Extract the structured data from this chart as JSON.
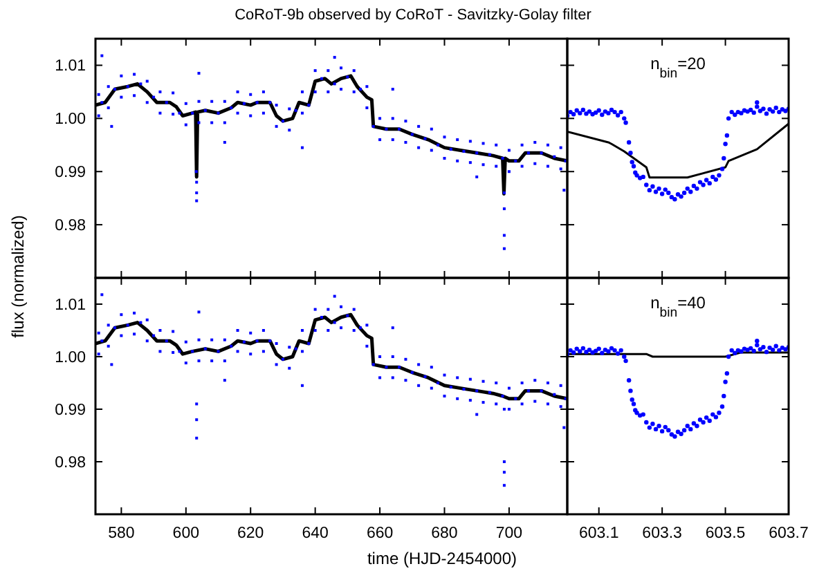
{
  "chart_data": [
    {
      "type": "scatter",
      "title": "CoRoT-9b observed by CoRoT - Savitzky-Golay filter",
      "xlim": [
        572,
        718
      ],
      "ylim": [
        0.97,
        1.015
      ],
      "xticks": [
        580,
        600,
        620,
        640,
        660,
        680,
        700
      ],
      "yticks": [
        0.98,
        0.99,
        {
          "value": 1,
          "label": "1.00"
        },
        1.01
      ],
      "tick_labels": "y",
      "grid": false,
      "series": [
        {
          "marker": "square",
          "color": "#0000ff",
          "x": [
            573,
            573,
            574,
            576,
            576,
            578,
            580,
            580,
            582,
            584,
            584,
            586,
            588,
            588,
            590,
            592,
            592,
            594,
            596,
            596,
            598,
            600,
            600,
            602,
            604,
            604,
            606,
            608,
            608,
            610,
            612,
            612,
            614,
            616,
            616,
            618,
            620,
            620,
            622,
            624,
            624,
            626,
            628,
            628,
            630,
            632,
            632,
            634,
            636,
            636,
            638,
            640,
            640,
            642,
            644,
            644,
            646,
            648,
            648,
            650,
            652,
            652,
            654,
            656,
            656,
            658,
            660,
            660,
            662,
            664,
            664,
            666,
            668,
            668,
            670,
            672,
            672,
            674,
            676,
            676,
            678,
            680,
            680,
            682,
            684,
            684,
            686,
            688,
            688,
            690,
            692,
            692,
            694,
            696,
            696,
            698,
            700,
            700,
            702,
            704,
            704,
            706,
            708,
            708,
            710,
            712,
            712,
            714,
            716,
            716,
            717.5,
            603.2,
            603.3,
            603.3,
            603.3,
            698.5,
            698.5,
            698.5,
            698.5,
            574,
            577,
            604,
            612,
            636,
            646,
            664,
            690,
            717
          ],
          "values": [
            1.0045,
            1.0005,
            1.003,
            1.006,
            1.002,
            1.0055,
            1.008,
            1.004,
            1.006,
            1.0083,
            1.0043,
            1.0065,
            1.007,
            1.003,
            1.004,
            1.005,
            1.001,
            1.003,
            1.0048,
            1.0008,
            1.001,
            1.0028,
            0.9988,
            1.001,
            1.0032,
            0.9992,
            1.0015,
            1.0032,
            0.9992,
            1.001,
            1.0032,
            0.9992,
            1.002,
            1.005,
            1.001,
            1.0028,
            1.0045,
            1.0005,
            1.003,
            1.005,
            1.001,
            1.003,
            1.0025,
            0.9985,
            0.9995,
            1.0018,
            0.9978,
            1.0015,
            1.005,
            1.001,
            1.0025,
            1.009,
            1.005,
            1.0075,
            1.009,
            1.005,
            1.0065,
            1.0095,
            1.0055,
            1.0078,
            1.009,
            1.005,
            1.0055,
            1.006,
            1.002,
            0.9985,
            1.0,
            0.996,
            0.998,
            1.0,
            0.996,
            0.998,
            0.9995,
            0.9955,
            0.997,
            0.9985,
            0.9945,
            0.9962,
            0.998,
            0.994,
            0.995,
            0.9965,
            0.9925,
            0.9942,
            0.996,
            0.992,
            0.9938,
            0.9957,
            0.9917,
            0.9935,
            0.9953,
            0.9913,
            0.9932,
            0.995,
            0.991,
            0.9925,
            0.994,
            0.99,
            0.992,
            0.995,
            0.991,
            0.9935,
            0.9955,
            0.9915,
            0.9935,
            0.995,
            0.991,
            0.9928,
            0.9945,
            0.9905,
            0.992,
            0.99,
            0.988,
            0.986,
            0.9845,
            0.986,
            0.983,
            0.978,
            0.9755,
            1.0118,
            0.9985,
            1.0085,
            0.9955,
            0.9945,
            1.0115,
            1.0055,
            0.989,
            0.9865
          ]
        },
        {
          "type": "line",
          "marker": "none",
          "color": "#000000",
          "x": [
            572,
            575,
            578,
            582,
            585,
            588,
            591,
            595,
            597,
            599,
            602,
            603.0,
            603.3,
            603.6,
            606,
            610,
            614,
            616,
            620,
            622,
            626,
            628,
            630,
            633,
            635,
            638,
            640,
            643,
            645,
            648,
            651,
            653,
            656,
            657.5,
            658,
            662,
            666,
            670,
            675,
            680,
            685,
            690,
            695,
            698,
            698.4,
            698.8,
            700,
            703,
            705,
            710,
            714,
            718
          ],
          "values": [
            1.0025,
            1.003,
            1.0055,
            1.006,
            1.0065,
            1.005,
            1.003,
            1.003,
            1.0022,
            1.0005,
            1.001,
            1.0012,
            0.989,
            1.0012,
            1.0015,
            1.001,
            1.002,
            1.003,
            1.0025,
            1.003,
            1.003,
            1.0005,
            0.9995,
            1.0,
            1.003,
            1.0025,
            1.007,
            1.0075,
            1.0065,
            1.0075,
            1.008,
            1.006,
            1.004,
            1.0035,
            0.9985,
            0.998,
            0.998,
            0.997,
            0.996,
            0.9945,
            0.994,
            0.9935,
            0.993,
            0.9925,
            0.9858,
            0.9925,
            0.992,
            0.992,
            0.9935,
            0.9935,
            0.9925,
            0.992
          ]
        }
      ]
    },
    {
      "type": "scatter",
      "xlim": [
        603.0,
        603.7
      ],
      "ylim": [
        0.97,
        1.015
      ],
      "xticks": [
        603.1,
        603.3,
        603.5,
        603.7
      ],
      "yticks": [
        0.98,
        0.99,
        1,
        1.01
      ],
      "tick_labels": false,
      "grid": false,
      "annotations": [
        "n$_{bin}$=20"
      ],
      "series": [
        {
          "marker": "circle",
          "color": "#0000ff",
          "x": [
            603.0,
            603.01,
            603.02,
            603.03,
            603.04,
            603.05,
            603.06,
            603.07,
            603.08,
            603.09,
            603.1,
            603.11,
            603.12,
            603.13,
            603.14,
            603.15,
            603.16,
            603.17,
            603.18,
            603.185,
            603.195,
            603.2,
            603.205,
            603.21,
            603.215,
            603.22,
            603.23,
            603.24,
            603.25,
            603.26,
            603.27,
            603.28,
            603.29,
            603.3,
            603.31,
            603.32,
            603.33,
            603.34,
            603.35,
            603.36,
            603.37,
            603.38,
            603.39,
            603.4,
            603.41,
            603.42,
            603.43,
            603.44,
            603.45,
            603.46,
            603.47,
            603.48,
            603.49,
            603.495,
            603.5,
            603.505,
            603.51,
            603.52,
            603.53,
            603.54,
            603.55,
            603.56,
            603.57,
            603.58,
            603.59,
            603.6,
            603.61,
            603.62,
            603.63,
            603.64,
            603.65,
            603.66,
            603.67,
            603.68,
            603.69,
            603.7,
            603.6
          ],
          "values": [
            1.0005,
            1.0012,
            1.0008,
            1.0015,
            1.001,
            1.0016,
            1.0009,
            1.0013,
            1.0008,
            1.0011,
            1.0015,
            1.0007,
            1.0013,
            1.001,
            1.0016,
            1.0012,
            1.0006,
            1.0012,
            1.0,
            0.9992,
            0.9955,
            0.9935,
            0.9918,
            0.991,
            0.9898,
            0.9893,
            0.9888,
            0.989,
            0.9875,
            0.9865,
            0.9872,
            0.9862,
            0.9868,
            0.9858,
            0.9866,
            0.986,
            0.9852,
            0.9848,
            0.9857,
            0.9853,
            0.986,
            0.9868,
            0.9862,
            0.9873,
            0.9868,
            0.988,
            0.9875,
            0.9884,
            0.9878,
            0.989,
            0.9885,
            0.9893,
            0.9905,
            0.9925,
            0.9952,
            0.9968,
            1.0,
            1.0012,
            1.0007,
            1.0012,
            1.001,
            1.0015,
            1.0013,
            1.0016,
            1.0011,
            1.0022,
            1.0014,
            1.0018,
            1.0009,
            1.0017,
            1.0013,
            1.002,
            1.0012,
            1.0017,
            1.0014,
            1.0018,
            1.003
          ]
        },
        {
          "type": "line",
          "marker": "none",
          "color": "#000000",
          "x": [
            603.0,
            603.13,
            603.14,
            603.18,
            603.25,
            603.26,
            603.38,
            603.5,
            603.51,
            603.6,
            603.7
          ],
          "values": [
            0.9975,
            0.9955,
            0.9952,
            0.9938,
            0.9908,
            0.9889,
            0.9889,
            0.9908,
            0.992,
            0.9942,
            0.999
          ]
        }
      ]
    },
    {
      "type": "scatter",
      "xlabel": "time (HJD-2454000)",
      "ylabel": "flux (normalized)",
      "xlim": [
        572,
        718
      ],
      "ylim": [
        0.97,
        1.015
      ],
      "xticks": [
        580,
        600,
        620,
        640,
        660,
        680,
        700
      ],
      "yticks": [
        0.98,
        0.99,
        {
          "value": 1,
          "label": "1.00"
        },
        1.01
      ],
      "grid": false,
      "series": [
        {
          "marker": "square",
          "color": "#0000ff",
          "x": [
            573,
            573,
            574,
            576,
            576,
            578,
            580,
            580,
            582,
            584,
            584,
            586,
            588,
            588,
            590,
            592,
            592,
            594,
            596,
            596,
            598,
            600,
            600,
            602,
            604,
            604,
            606,
            608,
            608,
            610,
            612,
            612,
            614,
            616,
            616,
            618,
            620,
            620,
            622,
            624,
            624,
            626,
            628,
            628,
            630,
            632,
            632,
            634,
            636,
            636,
            638,
            640,
            640,
            642,
            644,
            644,
            646,
            648,
            648,
            650,
            652,
            652,
            654,
            656,
            656,
            658,
            660,
            660,
            662,
            664,
            664,
            666,
            668,
            668,
            670,
            672,
            672,
            674,
            676,
            676,
            678,
            680,
            680,
            682,
            684,
            684,
            686,
            688,
            688,
            690,
            692,
            692,
            694,
            696,
            696,
            698,
            700,
            700,
            702,
            704,
            704,
            706,
            708,
            708,
            710,
            712,
            712,
            714,
            716,
            716,
            717.5,
            603.3,
            603.3,
            603.3,
            698.5,
            698.5,
            698.5,
            698.5,
            574,
            577,
            604,
            612,
            636,
            646,
            664,
            690,
            717
          ],
          "values": [
            1.0045,
            1.0005,
            1.003,
            1.006,
            1.002,
            1.0055,
            1.008,
            1.004,
            1.006,
            1.0083,
            1.0043,
            1.0065,
            1.007,
            1.003,
            1.004,
            1.005,
            1.001,
            1.003,
            1.0048,
            1.0008,
            1.001,
            1.0028,
            0.9988,
            1.001,
            1.0032,
            0.9992,
            1.0015,
            1.0032,
            0.9992,
            1.001,
            1.0032,
            0.9992,
            1.002,
            1.005,
            1.001,
            1.0028,
            1.0045,
            1.0005,
            1.003,
            1.005,
            1.001,
            1.003,
            1.0025,
            0.9985,
            0.9995,
            1.0018,
            0.9978,
            1.0015,
            1.005,
            1.001,
            1.0025,
            1.009,
            1.005,
            1.0075,
            1.009,
            1.005,
            1.0065,
            1.0095,
            1.0055,
            1.0078,
            1.009,
            1.005,
            1.0055,
            1.006,
            1.002,
            0.9985,
            1.0,
            0.996,
            0.998,
            1.0,
            0.996,
            0.998,
            0.9995,
            0.9955,
            0.997,
            0.9985,
            0.9945,
            0.9962,
            0.998,
            0.994,
            0.995,
            0.9965,
            0.9925,
            0.9942,
            0.996,
            0.992,
            0.9938,
            0.9957,
            0.9917,
            0.9935,
            0.9953,
            0.9913,
            0.9932,
            0.995,
            0.991,
            0.9925,
            0.994,
            0.99,
            0.992,
            0.995,
            0.991,
            0.9935,
            0.9955,
            0.9915,
            0.9935,
            0.995,
            0.991,
            0.9928,
            0.9945,
            0.9905,
            0.992,
            0.991,
            0.988,
            0.9845,
            0.99,
            0.98,
            0.978,
            0.9755,
            1.0118,
            0.9985,
            1.0085,
            0.9955,
            0.9945,
            1.0115,
            1.0055,
            0.989,
            0.9865
          ]
        },
        {
          "type": "line",
          "marker": "none",
          "color": "#000000",
          "x": [
            572,
            575,
            578,
            582,
            585,
            588,
            591,
            595,
            597,
            599,
            602,
            606,
            610,
            614,
            616,
            620,
            622,
            626,
            628,
            630,
            633,
            635,
            638,
            640,
            643,
            645,
            648,
            651,
            653,
            656,
            657.5,
            658,
            662,
            666,
            670,
            675,
            680,
            685,
            690,
            695,
            698,
            700,
            703,
            705,
            710,
            714,
            718
          ],
          "values": [
            1.0025,
            1.003,
            1.0055,
            1.006,
            1.0065,
            1.005,
            1.003,
            1.003,
            1.0022,
            1.0005,
            1.001,
            1.0015,
            1.001,
            1.002,
            1.003,
            1.0025,
            1.003,
            1.003,
            1.0005,
            0.9995,
            1.0,
            1.003,
            1.0025,
            1.007,
            1.0075,
            1.0065,
            1.0075,
            1.008,
            1.006,
            1.004,
            1.0035,
            0.9985,
            0.998,
            0.998,
            0.997,
            0.996,
            0.9945,
            0.994,
            0.9935,
            0.993,
            0.9925,
            0.992,
            0.992,
            0.9935,
            0.9935,
            0.9925,
            0.992
          ]
        }
      ]
    },
    {
      "type": "scatter",
      "xlim": [
        603.0,
        603.7
      ],
      "ylim": [
        0.97,
        1.015
      ],
      "xticks": [
        603.1,
        603.3,
        603.5,
        603.7
      ],
      "yticks": [
        0.98,
        0.99,
        1,
        1.01
      ],
      "tick_labels": "x",
      "grid": false,
      "annotations": [
        "n$_{bin}$=40"
      ],
      "series": [
        {
          "marker": "circle",
          "color": "#0000ff",
          "x": [
            603.0,
            603.01,
            603.02,
            603.03,
            603.04,
            603.05,
            603.06,
            603.07,
            603.08,
            603.09,
            603.1,
            603.11,
            603.12,
            603.13,
            603.14,
            603.15,
            603.16,
            603.17,
            603.18,
            603.185,
            603.195,
            603.2,
            603.205,
            603.21,
            603.215,
            603.22,
            603.23,
            603.24,
            603.25,
            603.26,
            603.27,
            603.28,
            603.29,
            603.3,
            603.31,
            603.32,
            603.33,
            603.34,
            603.35,
            603.36,
            603.37,
            603.38,
            603.39,
            603.4,
            603.41,
            603.42,
            603.43,
            603.44,
            603.45,
            603.46,
            603.47,
            603.48,
            603.49,
            603.495,
            603.5,
            603.505,
            603.51,
            603.52,
            603.53,
            603.54,
            603.55,
            603.56,
            603.57,
            603.58,
            603.59,
            603.6,
            603.61,
            603.62,
            603.63,
            603.64,
            603.65,
            603.66,
            603.67,
            603.68,
            603.69,
            603.7,
            603.6
          ],
          "values": [
            1.0005,
            1.0012,
            1.0008,
            1.0015,
            1.001,
            1.0016,
            1.0009,
            1.0013,
            1.0008,
            1.0011,
            1.0015,
            1.0007,
            1.0013,
            1.001,
            1.0016,
            1.0012,
            1.0006,
            1.0012,
            1.0,
            0.9992,
            0.9955,
            0.9935,
            0.9918,
            0.991,
            0.9898,
            0.9893,
            0.9888,
            0.989,
            0.9875,
            0.9865,
            0.9872,
            0.9862,
            0.9868,
            0.9858,
            0.9866,
            0.986,
            0.9852,
            0.9848,
            0.9857,
            0.9853,
            0.986,
            0.9868,
            0.9862,
            0.9873,
            0.9868,
            0.988,
            0.9875,
            0.9884,
            0.9878,
            0.989,
            0.9885,
            0.9893,
            0.9905,
            0.9925,
            0.9952,
            0.9968,
            1.0,
            1.0012,
            1.0007,
            1.0012,
            1.001,
            1.0015,
            1.0013,
            1.0016,
            1.0011,
            1.0022,
            1.0014,
            1.0018,
            1.0009,
            1.0017,
            1.0013,
            1.002,
            1.0012,
            1.0017,
            1.0014,
            1.0018,
            1.003
          ]
        },
        {
          "type": "line",
          "marker": "none",
          "color": "#000000",
          "x": [
            603.0,
            603.25,
            603.27,
            603.5,
            603.55,
            603.7
          ],
          "values": [
            1.0005,
            1.0005,
            1.0,
            1.0,
            1.0008,
            1.0008
          ]
        }
      ]
    }
  ]
}
